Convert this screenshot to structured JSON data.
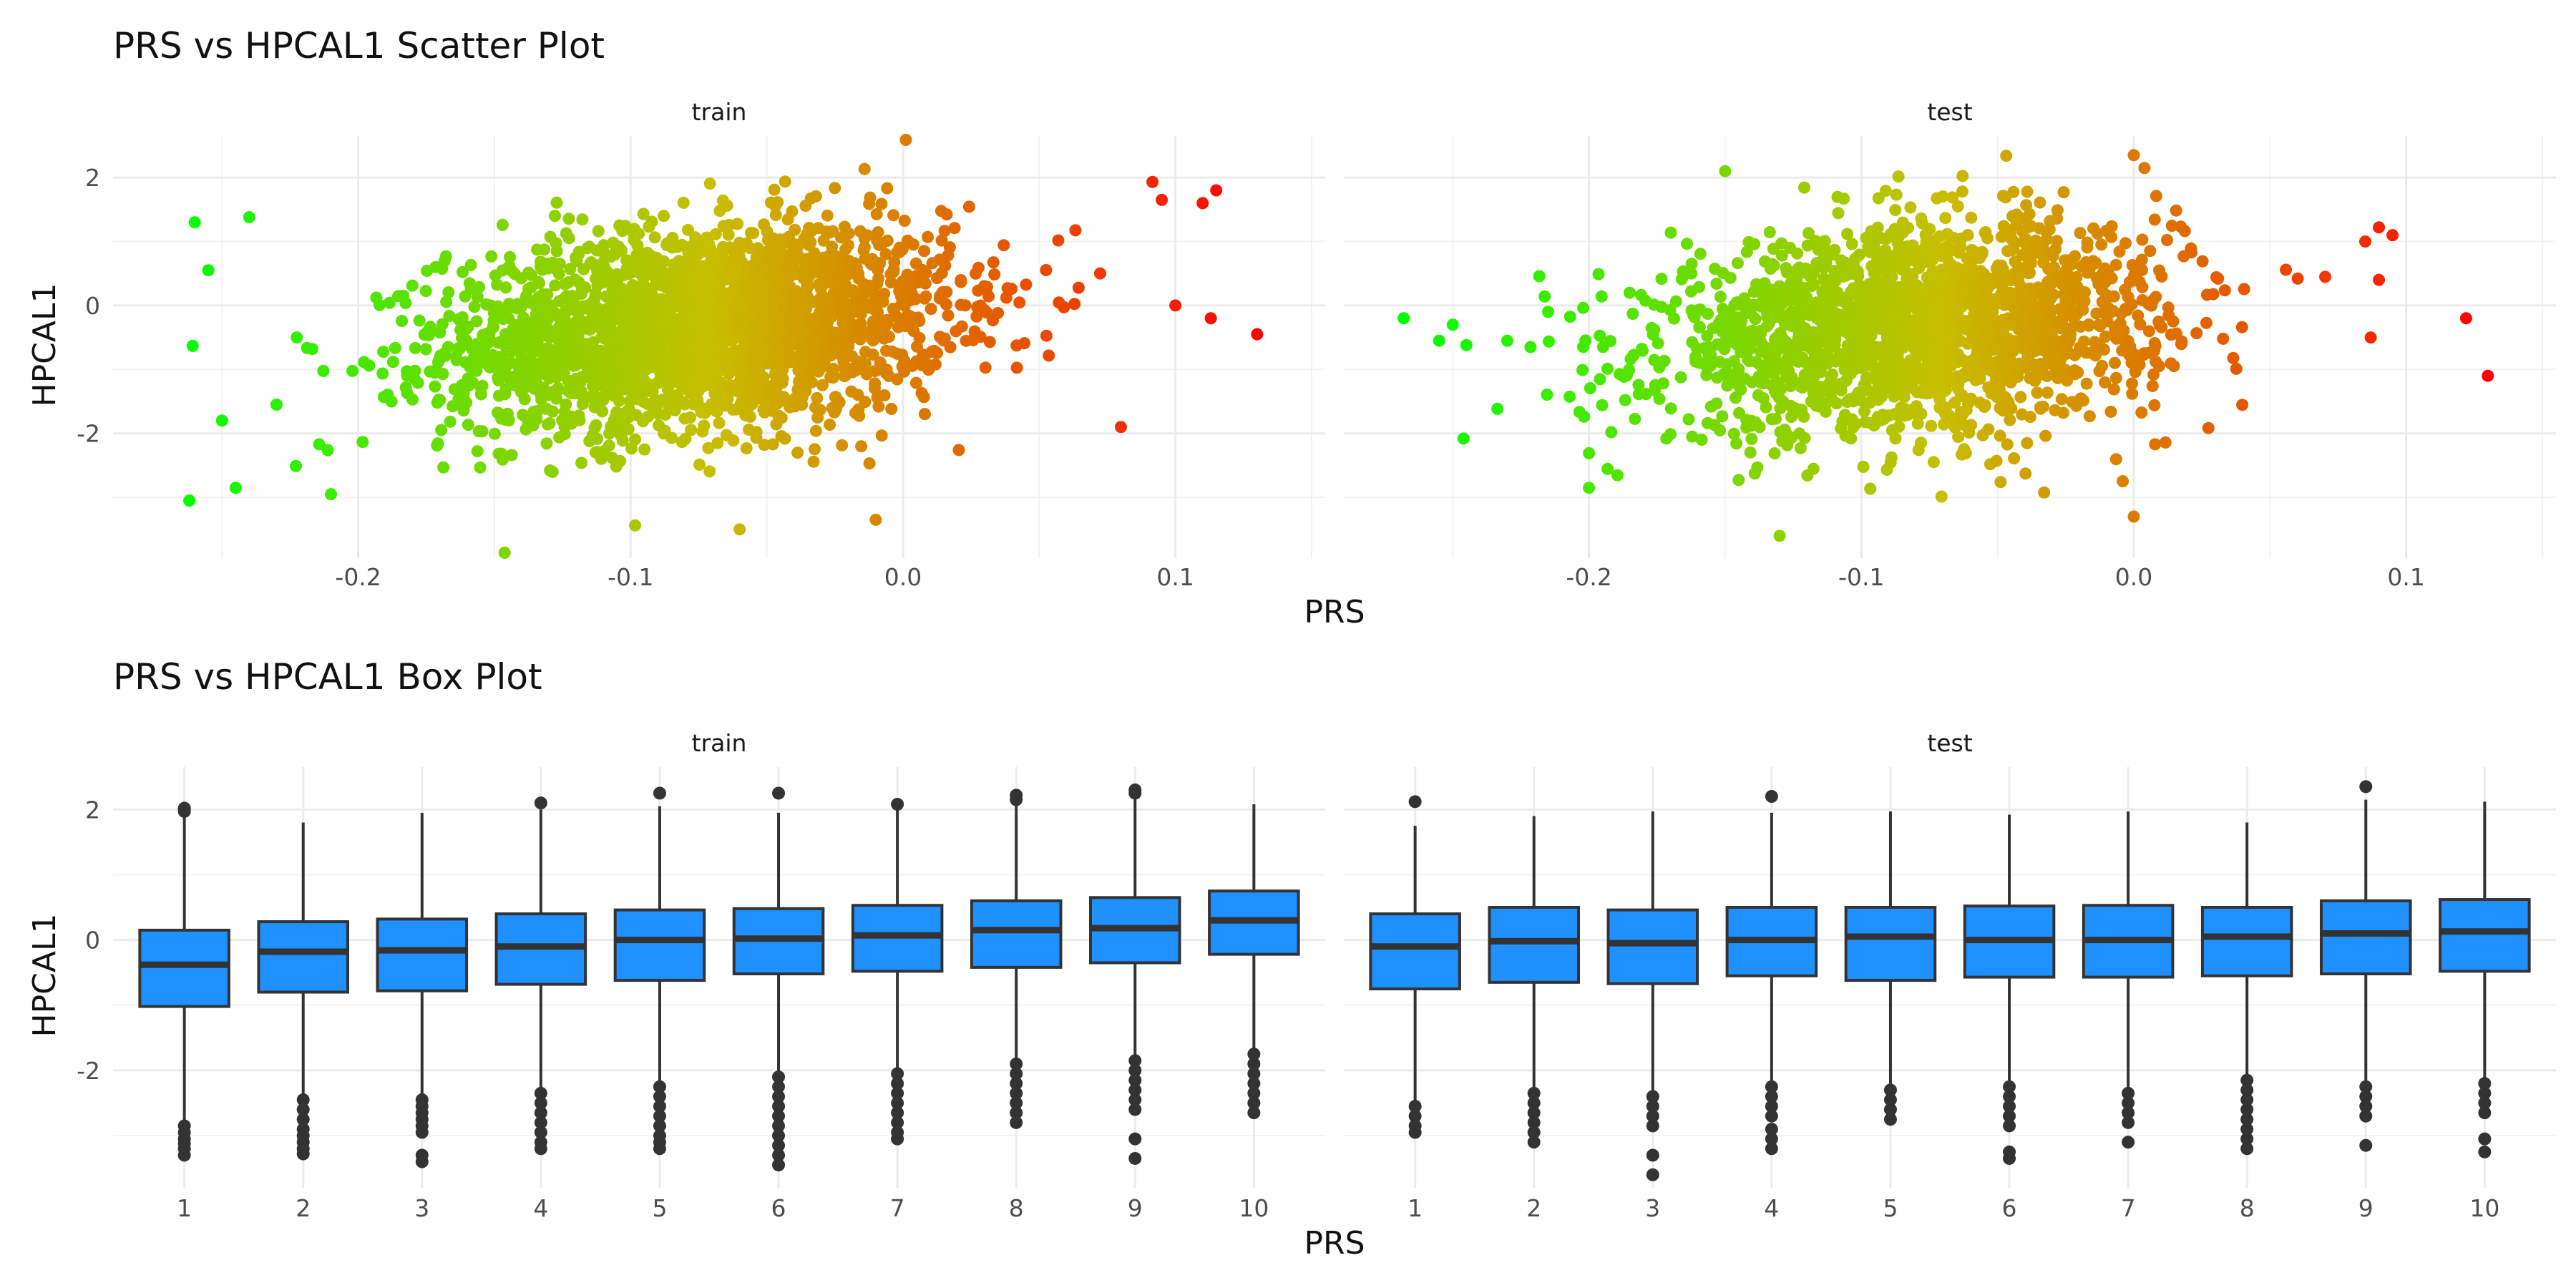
{
  "chart_data": [
    {
      "type": "scatter",
      "title": "PRS vs HPCAL1 Scatter Plot",
      "xlabel": "PRS",
      "ylabel": "HPCAL1",
      "xlim": [
        -0.29,
        0.155
      ],
      "ylim": [
        -3.95,
        2.65
      ],
      "x_ticks": [
        -0.2,
        -0.1,
        0.0,
        0.1
      ],
      "x_tick_labels": [
        "-0.2",
        "-0.1",
        "0.0",
        "0.1"
      ],
      "y_ticks": [
        -2,
        0,
        2
      ],
      "y_tick_labels": [
        "-2",
        "0",
        "2"
      ],
      "grid": true,
      "legend": "none",
      "color_low": "#00ff00",
      "color_high": "#ff0000",
      "panels": [
        {
          "name": "train",
          "cloud": {
            "x_center": -0.075,
            "x_sd": 0.05,
            "y_center": -0.35,
            "y_sd": 0.95,
            "n_points": 2600
          },
          "extreme_points": [
            {
              "x": -0.262,
              "y": -3.05
            },
            {
              "x": -0.26,
              "y": 1.3
            },
            {
              "x": -0.255,
              "y": 0.55
            },
            {
              "x": -0.25,
              "y": -1.8
            },
            {
              "x": -0.24,
              "y": 1.38
            },
            {
              "x": -0.245,
              "y": -2.85
            },
            {
              "x": -0.23,
              "y": -1.55
            },
            {
              "x": -0.21,
              "y": -2.95
            },
            {
              "x": 0.1,
              "y": 0.0
            },
            {
              "x": 0.11,
              "y": 1.6
            },
            {
              "x": 0.115,
              "y": 1.8
            },
            {
              "x": 0.113,
              "y": -0.2
            },
            {
              "x": 0.13,
              "y": -0.45
            },
            {
              "x": 0.095,
              "y": 1.65
            },
            {
              "x": 0.08,
              "y": -1.9
            },
            {
              "x": -0.01,
              "y": -3.35
            },
            {
              "x": -0.06,
              "y": -3.5
            }
          ]
        },
        {
          "name": "test",
          "cloud": {
            "x_center": -0.08,
            "x_sd": 0.05,
            "y_center": -0.35,
            "y_sd": 0.95,
            "n_points": 2000
          },
          "extreme_points": [
            {
              "x": -0.268,
              "y": -0.2
            },
            {
              "x": -0.255,
              "y": -0.55
            },
            {
              "x": -0.25,
              "y": -0.3
            },
            {
              "x": -0.245,
              "y": -0.62
            },
            {
              "x": -0.23,
              "y": -0.55
            },
            {
              "x": -0.215,
              "y": -0.1
            },
            {
              "x": -0.2,
              "y": -2.85
            },
            {
              "x": -0.13,
              "y": -3.6
            },
            {
              "x": 0.085,
              "y": 1.0
            },
            {
              "x": 0.09,
              "y": 1.22
            },
            {
              "x": 0.095,
              "y": 1.1
            },
            {
              "x": 0.09,
              "y": 0.4
            },
            {
              "x": 0.087,
              "y": -0.5
            },
            {
              "x": 0.122,
              "y": -0.2
            },
            {
              "x": 0.13,
              "y": -1.1
            },
            {
              "x": 0.0,
              "y": 2.35
            },
            {
              "x": -0.15,
              "y": 2.1
            },
            {
              "x": 0.0,
              "y": -3.3
            }
          ]
        }
      ]
    },
    {
      "type": "box",
      "title": "PRS vs HPCAL1 Box Plot",
      "xlabel": "PRS",
      "ylabel": "HPCAL1",
      "categories": [
        "1",
        "2",
        "3",
        "4",
        "5",
        "6",
        "7",
        "8",
        "9",
        "10"
      ],
      "ylim": [
        -3.8,
        2.65
      ],
      "y_ticks": [
        -2,
        0,
        2
      ],
      "y_tick_labels": [
        "-2",
        "0",
        "2"
      ],
      "grid": true,
      "legend": "none",
      "box_fill": "#1e90ff",
      "box_line": "#333333",
      "panels": [
        {
          "name": "train",
          "boxes": [
            {
              "q1": -1.02,
              "median": -0.38,
              "q3": 0.15,
              "lower": -2.8,
              "upper": 1.95,
              "outliers": [
                1.97,
                2.0,
                2.02,
                -2.85,
                -2.95,
                -3.05,
                -3.12,
                -3.2,
                -3.3
              ]
            },
            {
              "q1": -0.8,
              "median": -0.18,
              "q3": 0.28,
              "lower": -2.4,
              "upper": 1.8,
              "outliers": [
                -2.45,
                -2.6,
                -2.75,
                -2.9,
                -3.0,
                -3.1,
                -3.2,
                -3.28
              ]
            },
            {
              "q1": -0.78,
              "median": -0.16,
              "q3": 0.32,
              "lower": -2.4,
              "upper": 1.95,
              "outliers": [
                -2.45,
                -2.55,
                -2.65,
                -2.75,
                -2.85,
                -2.95,
                -3.3,
                -3.4
              ]
            },
            {
              "q1": -0.68,
              "median": -0.1,
              "q3": 0.4,
              "lower": -2.3,
              "upper": 2.0,
              "outliers": [
                2.1,
                -2.35,
                -2.5,
                -2.65,
                -2.8,
                -2.95,
                -3.1,
                -3.2
              ]
            },
            {
              "q1": -0.62,
              "median": 0.0,
              "q3": 0.46,
              "lower": -2.2,
              "upper": 2.05,
              "outliers": [
                2.25,
                -2.25,
                -2.4,
                -2.55,
                -2.7,
                -2.85,
                -3.0,
                -3.1,
                -3.2
              ]
            },
            {
              "q1": -0.52,
              "median": 0.02,
              "q3": 0.48,
              "lower": -2.05,
              "upper": 1.95,
              "outliers": [
                2.25,
                -2.1,
                -2.25,
                -2.4,
                -2.55,
                -2.7,
                -2.85,
                -3.0,
                -3.15,
                -3.3,
                -3.45
              ]
            },
            {
              "q1": -0.48,
              "median": 0.07,
              "q3": 0.53,
              "lower": -2.0,
              "upper": 2.0,
              "outliers": [
                2.08,
                -2.05,
                -2.2,
                -2.35,
                -2.5,
                -2.65,
                -2.8,
                -2.95,
                -3.05
              ]
            },
            {
              "q1": -0.42,
              "median": 0.15,
              "q3": 0.6,
              "lower": -1.85,
              "upper": 2.1,
              "outliers": [
                2.15,
                2.22,
                -1.9,
                -2.05,
                -2.2,
                -2.35,
                -2.5,
                -2.65,
                -2.8
              ]
            },
            {
              "q1": -0.35,
              "median": 0.18,
              "q3": 0.65,
              "lower": -1.8,
              "upper": 2.2,
              "outliers": [
                2.25,
                2.3,
                -1.85,
                -2.0,
                -2.15,
                -2.3,
                -2.45,
                -2.6,
                -3.05,
                -3.35
              ]
            },
            {
              "q1": -0.22,
              "median": 0.3,
              "q3": 0.75,
              "lower": -1.7,
              "upper": 2.08,
              "outliers": [
                -1.75,
                -1.9,
                -2.05,
                -2.2,
                -2.35,
                -2.5,
                -2.65
              ]
            }
          ]
        },
        {
          "name": "test",
          "boxes": [
            {
              "q1": -0.75,
              "median": -0.1,
              "q3": 0.4,
              "lower": -2.5,
              "upper": 1.75,
              "outliers": [
                2.12,
                -2.55,
                -2.7,
                -2.85,
                -2.95
              ]
            },
            {
              "q1": -0.65,
              "median": -0.02,
              "q3": 0.5,
              "lower": -2.3,
              "upper": 1.9,
              "outliers": [
                -2.35,
                -2.5,
                -2.65,
                -2.8,
                -2.95,
                -3.1
              ]
            },
            {
              "q1": -0.67,
              "median": -0.05,
              "q3": 0.46,
              "lower": -2.35,
              "upper": 1.97,
              "outliers": [
                -2.4,
                -2.55,
                -2.7,
                -2.85,
                -3.3,
                -3.6
              ]
            },
            {
              "q1": -0.55,
              "median": 0.0,
              "q3": 0.5,
              "lower": -2.2,
              "upper": 1.95,
              "outliers": [
                2.2,
                -2.25,
                -2.4,
                -2.55,
                -2.7,
                -2.9,
                -3.05,
                -3.2
              ]
            },
            {
              "q1": -0.62,
              "median": 0.05,
              "q3": 0.5,
              "lower": -2.25,
              "upper": 1.97,
              "outliers": [
                -2.3,
                -2.45,
                -2.6,
                -2.75
              ]
            },
            {
              "q1": -0.57,
              "median": 0.0,
              "q3": 0.52,
              "lower": -2.2,
              "upper": 1.92,
              "outliers": [
                -2.25,
                -2.4,
                -2.55,
                -2.7,
                -2.85,
                -3.25,
                -3.35
              ]
            },
            {
              "q1": -0.57,
              "median": 0.0,
              "q3": 0.53,
              "lower": -2.3,
              "upper": 1.97,
              "outliers": [
                -2.35,
                -2.5,
                -2.65,
                -2.8,
                -3.1
              ]
            },
            {
              "q1": -0.55,
              "median": 0.05,
              "q3": 0.5,
              "lower": -2.1,
              "upper": 1.8,
              "outliers": [
                -2.15,
                -2.3,
                -2.45,
                -2.6,
                -2.75,
                -2.9,
                -3.05,
                -3.2
              ]
            },
            {
              "q1": -0.52,
              "median": 0.1,
              "q3": 0.6,
              "lower": -2.2,
              "upper": 2.15,
              "outliers": [
                2.35,
                -2.25,
                -2.4,
                -2.55,
                -2.7,
                -3.15
              ]
            },
            {
              "q1": -0.48,
              "median": 0.13,
              "q3": 0.62,
              "lower": -2.15,
              "upper": 2.12,
              "outliers": [
                -2.2,
                -2.35,
                -2.5,
                -2.65,
                -3.05,
                -3.25
              ]
            }
          ]
        }
      ]
    }
  ]
}
